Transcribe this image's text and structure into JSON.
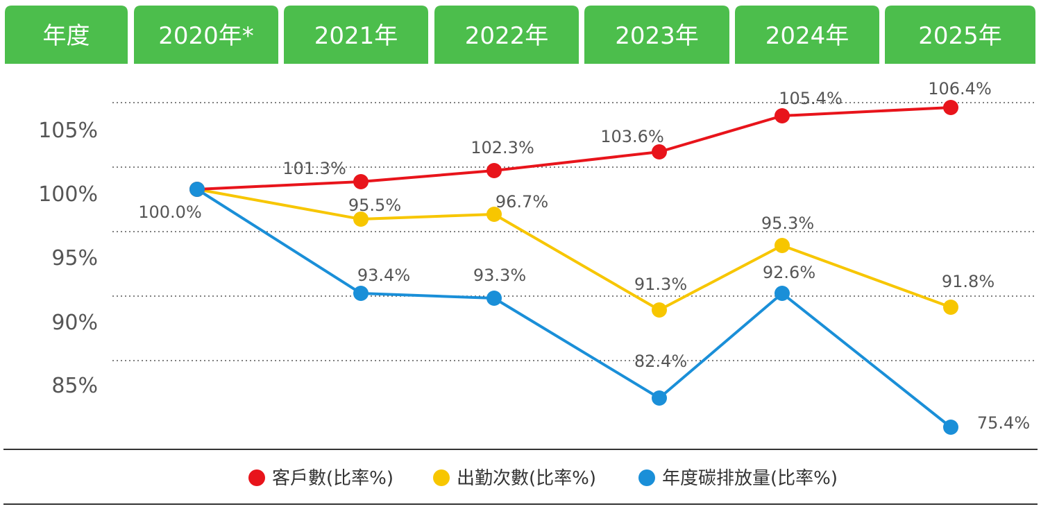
{
  "header": {
    "first_cell": "年度"
  },
  "chart_data": {
    "type": "line",
    "categories": [
      "2020年*",
      "2021年",
      "2022年",
      "2023年",
      "2024年",
      "2025年"
    ],
    "yticks": [
      "105%",
      "100%",
      "95%",
      "90%",
      "85%"
    ],
    "grid": "horizontal dotted",
    "legend_position": "bottom",
    "series": [
      {
        "name": "客戶數(比率%)",
        "color": "#e8141b",
        "values": [
          100.0,
          101.3,
          102.3,
          103.6,
          105.4,
          106.4
        ],
        "labels": [
          "100.0%",
          "101.3%",
          "102.3%",
          "103.6%",
          "105.4%",
          "106.4%"
        ]
      },
      {
        "name": "出勤次數(比率%)",
        "color": "#f7c600",
        "values": [
          100.0,
          95.5,
          96.7,
          91.3,
          95.3,
          91.8
        ],
        "labels": [
          "",
          "95.5%",
          "96.7%",
          "91.3%",
          "95.3%",
          "91.8%"
        ]
      },
      {
        "name": "年度碳排放量(比率%)",
        "color": "#1a8fd8",
        "values": [
          100.0,
          93.4,
          93.3,
          82.4,
          92.6,
          75.4
        ],
        "labels": [
          "",
          "93.4%",
          "93.3%",
          "82.4%",
          "92.6%",
          "75.4%"
        ]
      }
    ]
  },
  "colors": {
    "header_bg": "#4cbe4c",
    "header_text": "#ffffff",
    "grid": "#555555",
    "axis_text": "#555555"
  }
}
